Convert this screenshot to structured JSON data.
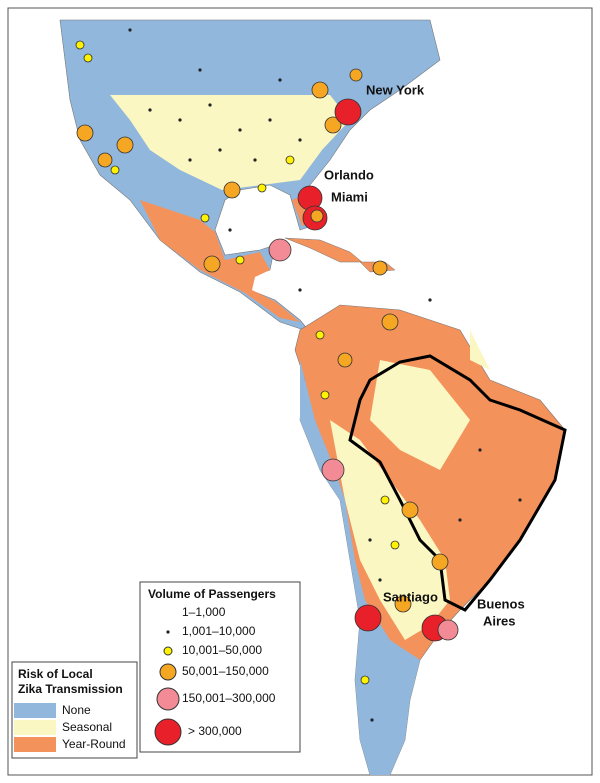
{
  "map": {
    "city_labels": [
      "New York",
      "Orlando",
      "Miami",
      "Santiago",
      "Buenos",
      "Aires"
    ],
    "passenger_legend": {
      "title": "Volume of Passengers",
      "items": [
        "1–1,000",
        "1,001–10,000",
        "10,001–50,000",
        "50,001–150,000",
        "150,001–300,000",
        "> 300,000"
      ]
    },
    "risk_legend": {
      "title_lines": [
        "Risk of Local",
        "Zika Transmission"
      ],
      "items": [
        "None",
        "Seasonal",
        "Year-Round"
      ]
    }
  }
}
